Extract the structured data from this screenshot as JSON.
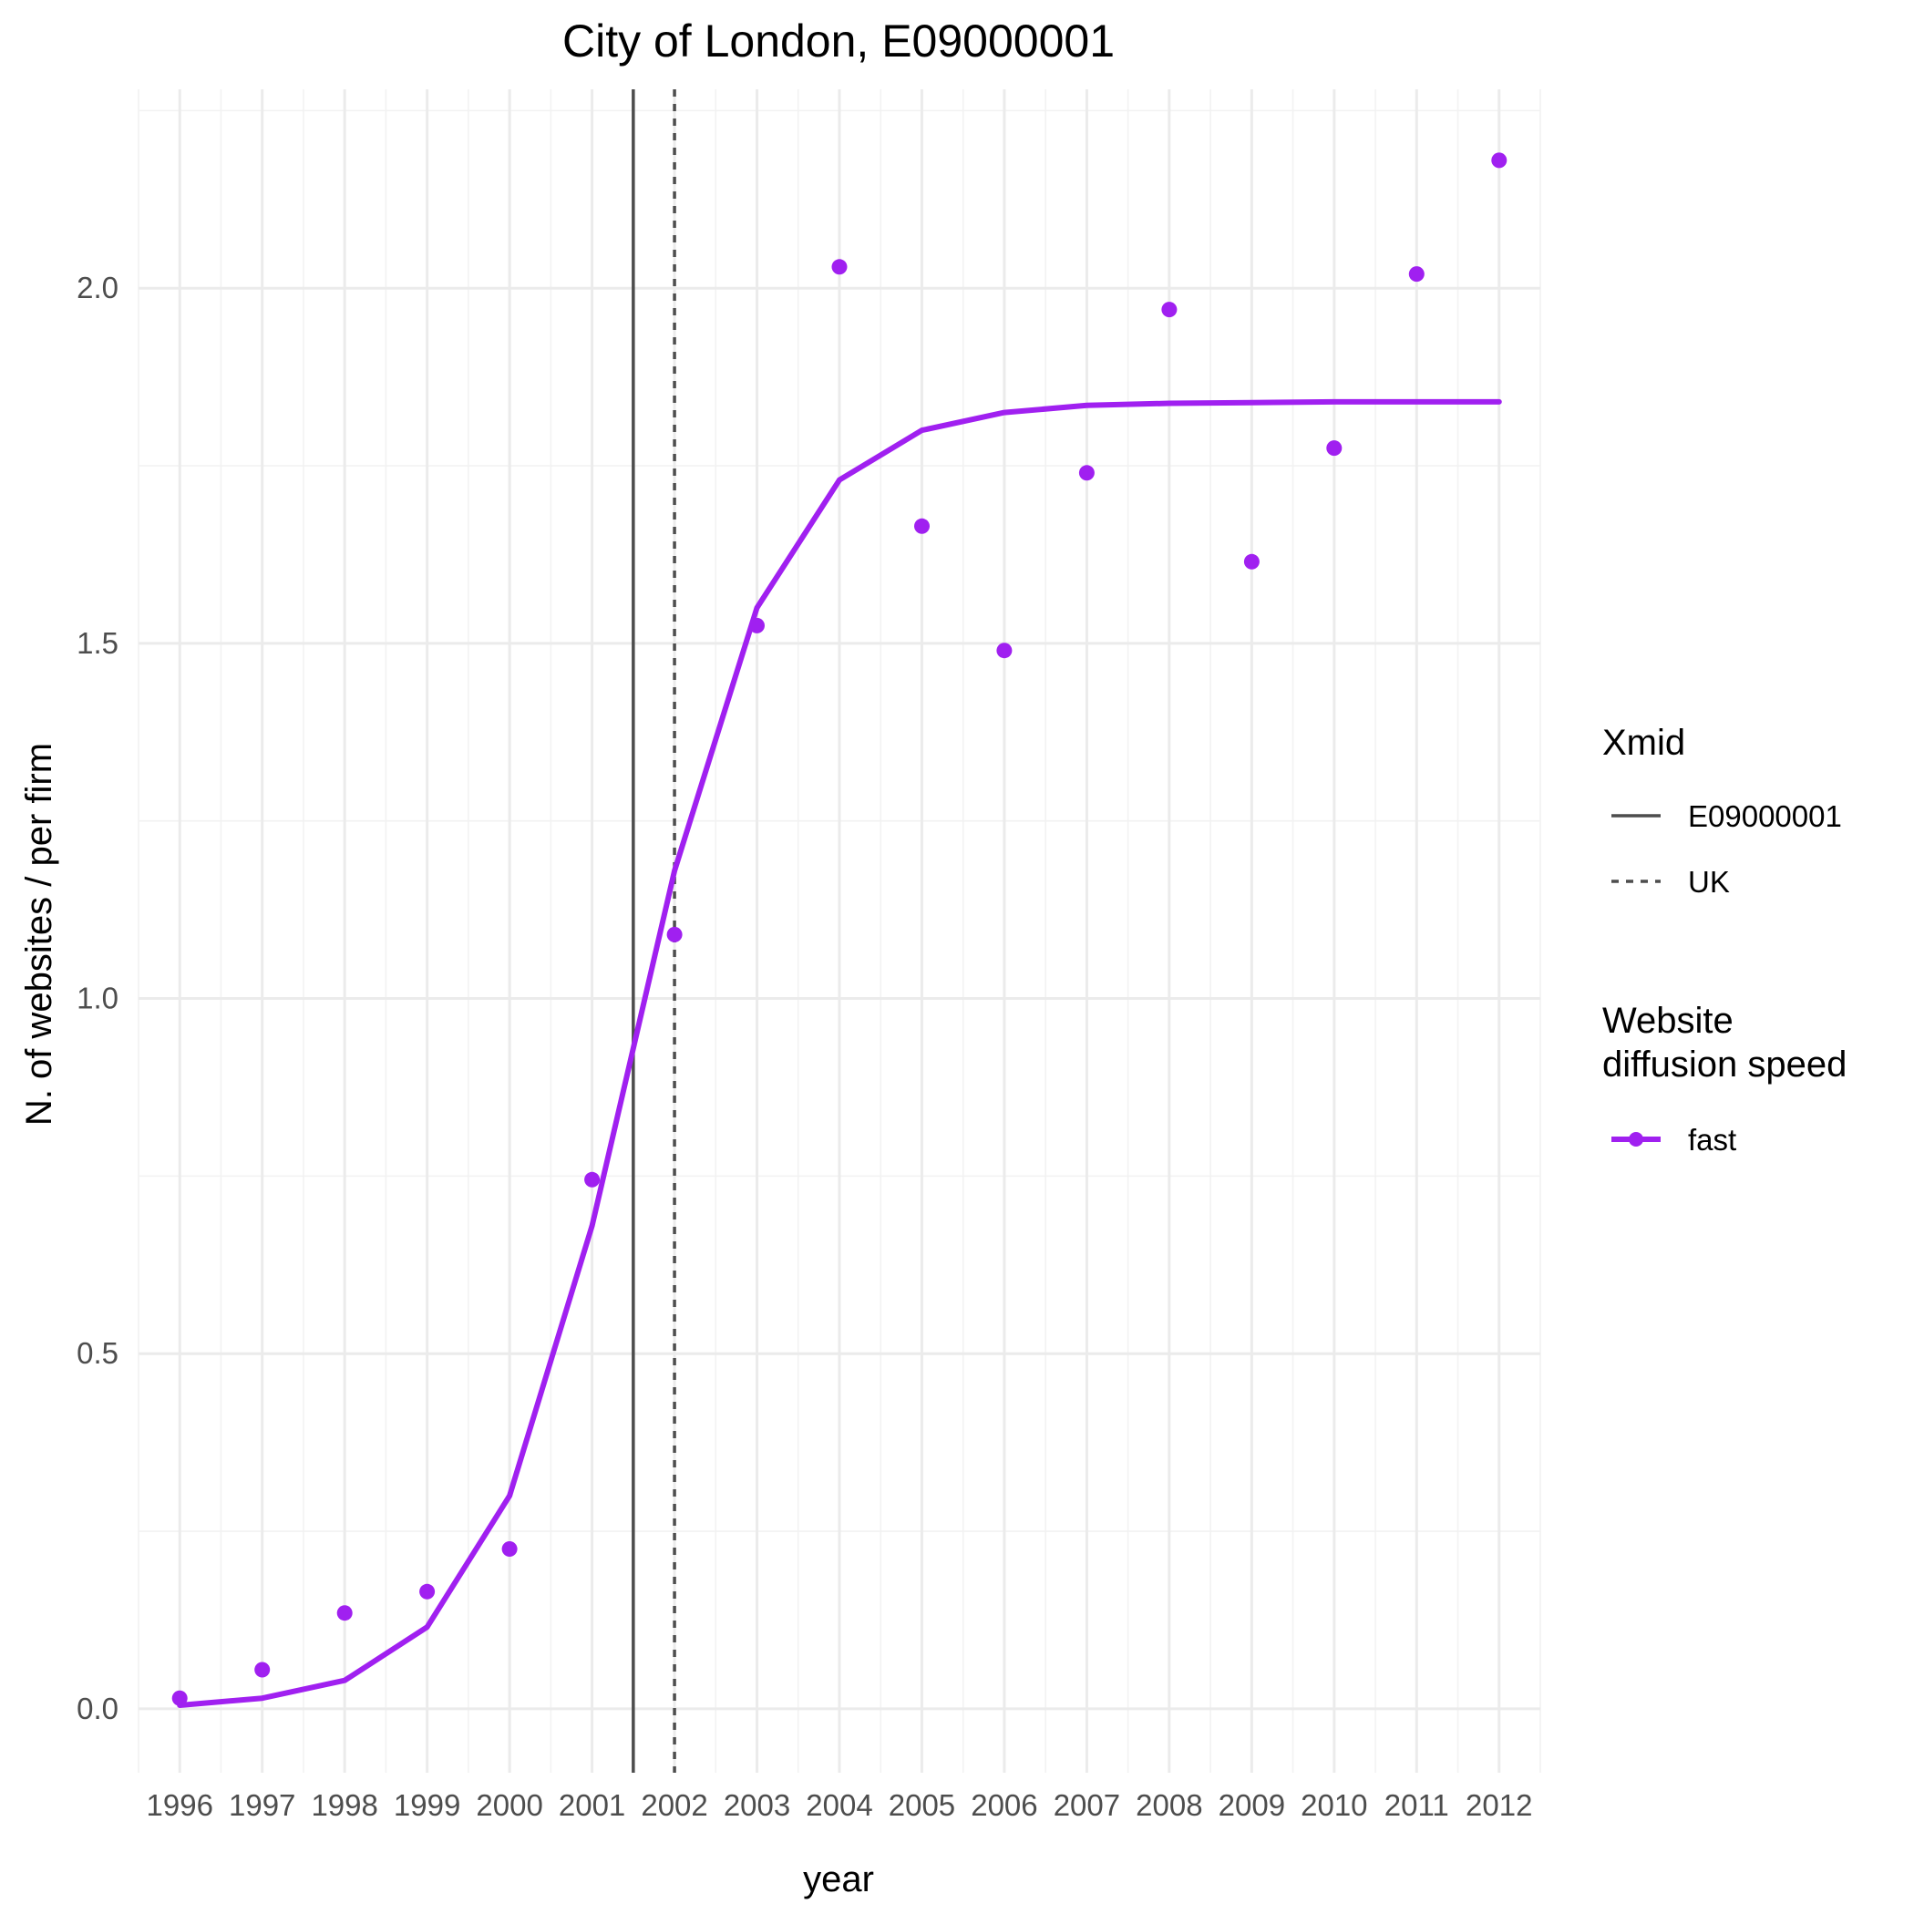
{
  "chart_data": {
    "type": "line",
    "title": "City of London, E09000001",
    "xlabel": "year",
    "ylabel": "N. of websites / per firm",
    "x_ticks": [
      "1996",
      "1997",
      "1998",
      "1999",
      "2000",
      "2001",
      "2002",
      "2003",
      "2004",
      "2005",
      "2006",
      "2007",
      "2008",
      "2009",
      "2010",
      "2011",
      "2012"
    ],
    "y_ticks": [
      "0.0",
      "0.5",
      "1.0",
      "1.5",
      "2.0"
    ],
    "xlim": [
      1995.5,
      2012.5
    ],
    "ylim": [
      -0.09,
      2.28
    ],
    "grid": true,
    "series": [
      {
        "name": "fast",
        "kind": "fitted-line",
        "color": "#a020f0",
        "x": [
          1996,
          1997,
          1998,
          1999,
          2000,
          2001,
          2002,
          2003,
          2004,
          2005,
          2006,
          2007,
          2008,
          2009,
          2010,
          2011,
          2012
        ],
        "y": [
          0.005,
          0.015,
          0.04,
          0.115,
          0.3,
          0.68,
          1.18,
          1.55,
          1.73,
          1.8,
          1.825,
          1.835,
          1.838,
          1.839,
          1.84,
          1.84,
          1.84
        ]
      },
      {
        "name": "fast",
        "kind": "observed-points",
        "color": "#a020f0",
        "x": [
          1996,
          1997,
          1998,
          1999,
          2000,
          2001,
          2002,
          2003,
          2004,
          2005,
          2006,
          2007,
          2008,
          2009,
          2010,
          2011,
          2012
        ],
        "y": [
          0.015,
          0.055,
          0.135,
          0.165,
          0.225,
          0.745,
          1.09,
          1.525,
          2.03,
          1.665,
          1.49,
          1.74,
          1.97,
          1.615,
          1.775,
          2.02,
          2.18
        ]
      }
    ],
    "vlines": [
      {
        "label": "E09000001",
        "x": 2001.5,
        "linetype": "solid",
        "color": "#4d4d4d"
      },
      {
        "label": "UK",
        "x": 2002.0,
        "linetype": "dashed",
        "color": "#4d4d4d"
      }
    ],
    "legend": {
      "placement": "right",
      "groups": [
        {
          "title": "Xmid",
          "entries": [
            {
              "label": "E09000001",
              "linetype": "solid"
            },
            {
              "label": "UK",
              "linetype": "dashed"
            }
          ]
        },
        {
          "title_lines": [
            "Website",
            "diffusion speed"
          ],
          "entries": [
            {
              "label": "fast",
              "color": "#a020f0"
            }
          ]
        }
      ]
    }
  }
}
